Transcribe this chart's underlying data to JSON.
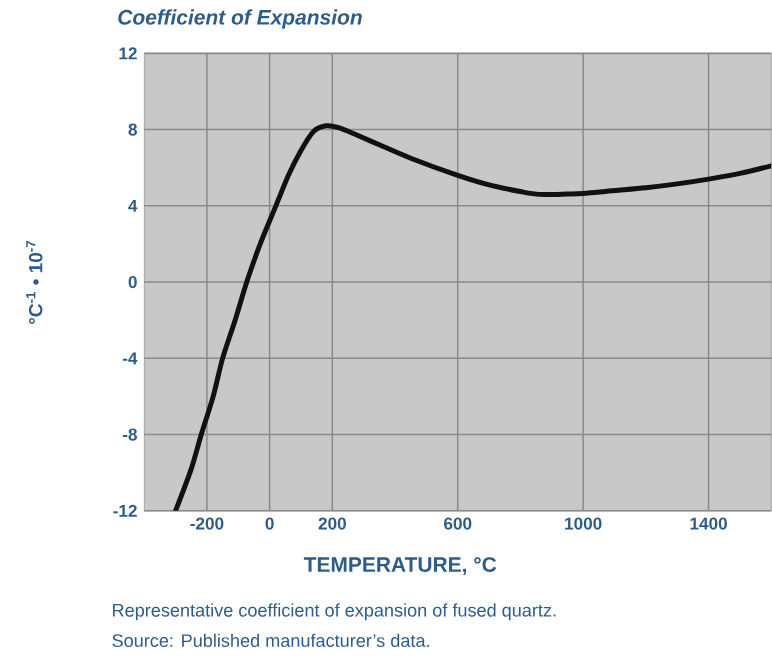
{
  "chart_data": {
    "type": "line",
    "title": "Coefficient of Expansion",
    "xlabel": "TEMPERATURE, °C",
    "ylabel": "°C$^{-1}$ • 10$^{-7}$",
    "annotations": [
      "Representative coefficient of expansion of fused quartz.",
      "Source: Published manufacturer’s data."
    ],
    "x": [
      -300,
      -250,
      -218,
      -180,
      -150,
      -110,
      -73,
      -30,
      20,
      60,
      100,
      140,
      180,
      220,
      280,
      350,
      450,
      600,
      700,
      800,
      860,
      950,
      1000,
      1100,
      1200,
      1300,
      1400,
      1500,
      1600
    ],
    "series": [
      {
        "color": "#111111",
        "values": [
          -12,
          -9.8,
          -8,
          -6,
          -4,
          -2,
          0,
          2,
          4,
          5.6,
          6.9,
          7.9,
          8.2,
          8.1,
          7.7,
          7.2,
          6.5,
          5.6,
          5.1,
          4.75,
          4.6,
          4.62,
          4.65,
          4.8,
          4.95,
          5.15,
          5.4,
          5.7,
          6.1
        ]
      }
    ],
    "xlim": [
      -400,
      1600
    ],
    "ylim": [
      -12,
      12
    ],
    "xticks": [
      -200,
      0,
      200,
      600,
      1000,
      1400
    ],
    "yticks": [
      -12,
      -8,
      -4,
      0,
      4,
      8,
      12
    ],
    "grid": true,
    "line_style": "solid",
    "marker": "none"
  }
}
